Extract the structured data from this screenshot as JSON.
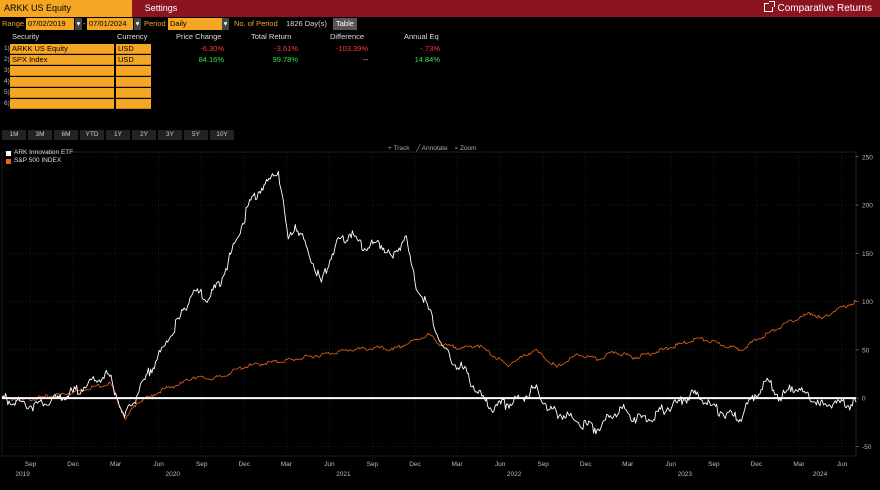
{
  "header": {
    "ticker": "ARKK US Equity",
    "settings_label": "Settings",
    "function_title": "Comparative Returns"
  },
  "range": {
    "label": "Range",
    "start": "07/02/2019",
    "end": "07/01/2024",
    "period_label": "Period",
    "period_value": "Daily",
    "num_period_label": "No. of Period",
    "num_period_value": "1826 Day(s)",
    "table_button": "Table"
  },
  "table": {
    "columns": [
      "Security",
      "Currency",
      "Price Change",
      "Total Return",
      "Difference",
      "Annual Eq"
    ],
    "rows": [
      {
        "num": "1)",
        "security": "ARKK US Equity",
        "currency": "USD",
        "price_change": "-6.30%",
        "total_return": "-3.61%",
        "difference": "-103.39%",
        "annual_eq": "-.73%"
      },
      {
        "num": "2)",
        "security": "SPX Index",
        "currency": "USD",
        "price_change": "84.16%",
        "total_return": "99.78%",
        "difference": "--",
        "annual_eq": "14.84%"
      },
      {
        "num": "3)",
        "security": "",
        "currency": ""
      },
      {
        "num": "4)",
        "security": "",
        "currency": ""
      },
      {
        "num": "5)",
        "security": "",
        "currency": ""
      },
      {
        "num": "6)",
        "security": "",
        "currency": ""
      }
    ]
  },
  "periods": [
    "1M",
    "3M",
    "6M",
    "YTD",
    "1Y",
    "2Y",
    "3Y",
    "5Y",
    "10Y"
  ],
  "tools": {
    "track": "+ Track",
    "annotate": "╱ Annotate",
    "zoom": "⌕ Zoom"
  },
  "colors": {
    "arkk": "#ffffff",
    "spx": "#e8621a",
    "accent": "#f5a623",
    "topbar": "#8b1420"
  },
  "chart_data": {
    "type": "line",
    "xlim": [
      "2019-07-02",
      "2024-07-01"
    ],
    "ylim": [
      -60,
      255
    ],
    "y_ticks": [
      -50,
      0,
      50,
      100,
      150,
      200,
      250
    ],
    "x_month_ticks": [
      {
        "label": "Sep",
        "date": "2019-09-01"
      },
      {
        "label": "Dec",
        "date": "2019-12-01"
      },
      {
        "label": "Mar",
        "date": "2020-03-01"
      },
      {
        "label": "Jun",
        "date": "2020-06-01"
      },
      {
        "label": "Sep",
        "date": "2020-09-01"
      },
      {
        "label": "Dec",
        "date": "2020-12-01"
      },
      {
        "label": "Mar",
        "date": "2021-03-01"
      },
      {
        "label": "Jun",
        "date": "2021-06-01"
      },
      {
        "label": "Sep",
        "date": "2021-09-01"
      },
      {
        "label": "Dec",
        "date": "2021-12-01"
      },
      {
        "label": "Mar",
        "date": "2022-03-01"
      },
      {
        "label": "Jun",
        "date": "2022-06-01"
      },
      {
        "label": "Sep",
        "date": "2022-09-01"
      },
      {
        "label": "Dec",
        "date": "2022-12-01"
      },
      {
        "label": "Mar",
        "date": "2023-03-01"
      },
      {
        "label": "Jun",
        "date": "2023-06-01"
      },
      {
        "label": "Sep",
        "date": "2023-09-01"
      },
      {
        "label": "Dec",
        "date": "2023-12-01"
      },
      {
        "label": "Mar",
        "date": "2024-03-01"
      },
      {
        "label": "Jun",
        "date": "2024-06-01"
      }
    ],
    "x_year_ticks": [
      {
        "label": "2019",
        "date": "2019-08-15"
      },
      {
        "label": "2020",
        "date": "2020-07-01"
      },
      {
        "label": "2021",
        "date": "2021-07-01"
      },
      {
        "label": "2022",
        "date": "2022-07-01"
      },
      {
        "label": "2023",
        "date": "2023-07-01"
      },
      {
        "label": "2024",
        "date": "2024-04-15"
      }
    ],
    "series": [
      {
        "name": "ARK Innovation ETF",
        "color": "#ffffff",
        "points": [
          [
            "2019-07-02",
            0
          ],
          [
            "2019-08-01",
            -3
          ],
          [
            "2019-09-01",
            -8
          ],
          [
            "2019-10-01",
            -6
          ],
          [
            "2019-11-01",
            0
          ],
          [
            "2019-12-01",
            6
          ],
          [
            "2020-01-01",
            14
          ],
          [
            "2020-02-15",
            25
          ],
          [
            "2020-03-01",
            5
          ],
          [
            "2020-03-20",
            -20
          ],
          [
            "2020-04-15",
            2
          ],
          [
            "2020-05-15",
            30
          ],
          [
            "2020-06-15",
            55
          ],
          [
            "2020-07-15",
            82
          ],
          [
            "2020-08-15",
            112
          ],
          [
            "2020-09-15",
            102
          ],
          [
            "2020-10-15",
            125
          ],
          [
            "2020-11-15",
            165
          ],
          [
            "2020-12-15",
            205
          ],
          [
            "2021-01-15",
            222
          ],
          [
            "2021-02-12",
            235
          ],
          [
            "2021-03-05",
            165
          ],
          [
            "2021-03-20",
            180
          ],
          [
            "2021-04-15",
            155
          ],
          [
            "2021-05-15",
            120
          ],
          [
            "2021-06-15",
            160
          ],
          [
            "2021-07-15",
            170
          ],
          [
            "2021-08-15",
            155
          ],
          [
            "2021-09-15",
            162
          ],
          [
            "2021-10-15",
            145
          ],
          [
            "2021-11-10",
            168
          ],
          [
            "2021-12-01",
            120
          ],
          [
            "2021-12-30",
            92
          ],
          [
            "2022-01-25",
            58
          ],
          [
            "2022-02-15",
            40
          ],
          [
            "2022-03-15",
            30
          ],
          [
            "2022-04-15",
            5
          ],
          [
            "2022-05-11",
            -10
          ],
          [
            "2022-06-15",
            -6
          ],
          [
            "2022-07-15",
            0
          ],
          [
            "2022-08-15",
            10
          ],
          [
            "2022-09-15",
            -12
          ],
          [
            "2022-10-15",
            -18
          ],
          [
            "2022-11-15",
            -25
          ],
          [
            "2022-12-28",
            -32
          ],
          [
            "2023-01-20",
            -20
          ],
          [
            "2023-02-15",
            -10
          ],
          [
            "2023-03-15",
            -20
          ],
          [
            "2023-04-15",
            -22
          ],
          [
            "2023-05-15",
            -12
          ],
          [
            "2023-06-15",
            -5
          ],
          [
            "2023-07-20",
            5
          ],
          [
            "2023-08-15",
            -5
          ],
          [
            "2023-09-15",
            -14
          ],
          [
            "2023-10-27",
            -22
          ],
          [
            "2023-11-20",
            0
          ],
          [
            "2023-12-27",
            18
          ],
          [
            "2024-01-20",
            0
          ],
          [
            "2024-02-15",
            12
          ],
          [
            "2024-03-15",
            5
          ],
          [
            "2024-04-15",
            -8
          ],
          [
            "2024-05-15",
            -5
          ],
          [
            "2024-06-15",
            -8
          ],
          [
            "2024-07-01",
            -4
          ]
        ]
      },
      {
        "name": "S&P 500 INDEX",
        "color": "#e8621a",
        "points": [
          [
            "2019-07-02",
            0
          ],
          [
            "2019-08-15",
            -2
          ],
          [
            "2019-10-01",
            1
          ],
          [
            "2019-12-01",
            6
          ],
          [
            "2020-01-15",
            12
          ],
          [
            "2020-02-19",
            15
          ],
          [
            "2020-03-23",
            -22
          ],
          [
            "2020-04-15",
            -5
          ],
          [
            "2020-05-15",
            2
          ],
          [
            "2020-06-15",
            10
          ],
          [
            "2020-07-15",
            14
          ],
          [
            "2020-08-15",
            22
          ],
          [
            "2020-09-15",
            20
          ],
          [
            "2020-10-15",
            22
          ],
          [
            "2020-11-15",
            30
          ],
          [
            "2020-12-15",
            34
          ],
          [
            "2021-01-15",
            36
          ],
          [
            "2021-03-15",
            40
          ],
          [
            "2021-05-15",
            45
          ],
          [
            "2021-07-15",
            50
          ],
          [
            "2021-09-15",
            52
          ],
          [
            "2021-10-15",
            50
          ],
          [
            "2021-12-31",
            66
          ],
          [
            "2022-01-25",
            55
          ],
          [
            "2022-03-15",
            52
          ],
          [
            "2022-04-15",
            55
          ],
          [
            "2022-06-16",
            34
          ],
          [
            "2022-08-15",
            50
          ],
          [
            "2022-09-30",
            32
          ],
          [
            "2022-11-15",
            45
          ],
          [
            "2022-12-28",
            40
          ],
          [
            "2023-02-01",
            48
          ],
          [
            "2023-03-15",
            42
          ],
          [
            "2023-05-15",
            50
          ],
          [
            "2023-07-31",
            62
          ],
          [
            "2023-10-27",
            50
          ],
          [
            "2023-12-29",
            68
          ],
          [
            "2024-02-15",
            80
          ],
          [
            "2024-03-28",
            88
          ],
          [
            "2024-04-19",
            82
          ],
          [
            "2024-05-15",
            90
          ],
          [
            "2024-07-01",
            100
          ]
        ]
      }
    ],
    "reference_line": 0,
    "grid": true
  }
}
